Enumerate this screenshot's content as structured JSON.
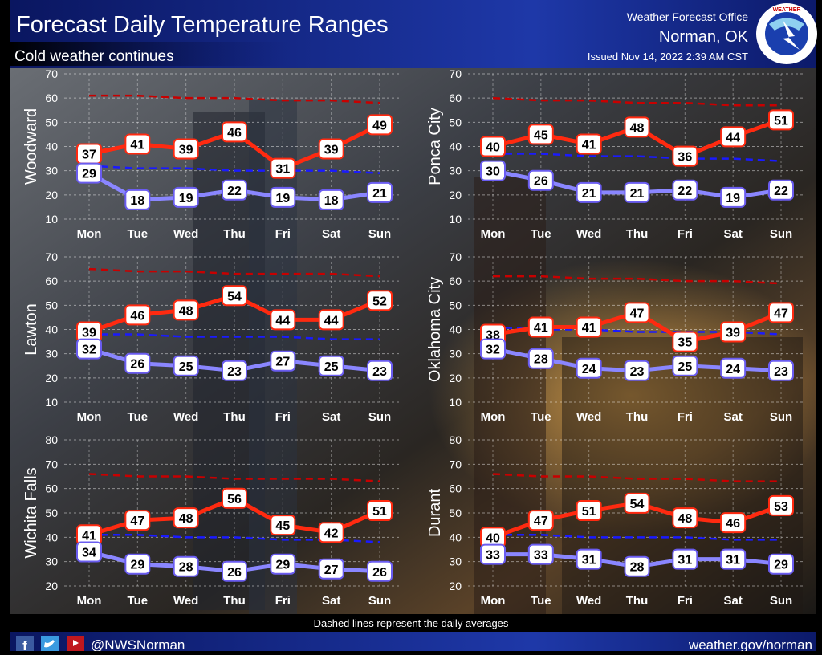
{
  "header": {
    "title": "Forecast Daily Temperature Ranges",
    "subtitle": "Cold weather continues",
    "office": "Weather Forecast Office",
    "location": "Norman, OK",
    "issued": "Issued Nov 14, 2022 2:39 AM CST",
    "logo_text": "NATIONAL WEATHER SERVICE"
  },
  "footer": {
    "note": "Dashed lines represent the daily averages",
    "handle": "@NWSNorman",
    "url": "weather.gov/norman",
    "icons": [
      "facebook-icon",
      "twitter-icon",
      "youtube-icon"
    ]
  },
  "colors": {
    "high": "#ff2a10",
    "low": "#8a86ff",
    "avg_high": "#c80000",
    "avg_low": "#1a1aff"
  },
  "chart_data": [
    {
      "type": "line",
      "title": "Woodward",
      "categories": [
        "Mon",
        "Tue",
        "Wed",
        "Thu",
        "Fri",
        "Sat",
        "Sun"
      ],
      "ylim": [
        10,
        70
      ],
      "yticks": [
        10,
        20,
        30,
        40,
        50,
        60,
        70
      ],
      "series": [
        {
          "name": "High",
          "values": [
            37,
            41,
            39,
            46,
            31,
            39,
            49
          ]
        },
        {
          "name": "Low",
          "values": [
            29,
            18,
            19,
            22,
            19,
            18,
            21
          ]
        },
        {
          "name": "Avg High",
          "values": [
            61,
            61,
            60,
            60,
            59,
            59,
            58
          ]
        },
        {
          "name": "Avg Low",
          "values": [
            32,
            31,
            31,
            30,
            30,
            30,
            29
          ]
        }
      ]
    },
    {
      "type": "line",
      "title": "Ponca City",
      "categories": [
        "Mon",
        "Tue",
        "Wed",
        "Thu",
        "Fri",
        "Sat",
        "Sun"
      ],
      "ylim": [
        10,
        70
      ],
      "yticks": [
        10,
        20,
        30,
        40,
        50,
        60,
        70
      ],
      "series": [
        {
          "name": "High",
          "values": [
            40,
            45,
            41,
            48,
            36,
            44,
            51
          ]
        },
        {
          "name": "Low",
          "values": [
            30,
            26,
            21,
            21,
            22,
            19,
            22
          ]
        },
        {
          "name": "Avg High",
          "values": [
            60,
            59,
            59,
            58,
            58,
            57,
            57
          ]
        },
        {
          "name": "Avg Low",
          "values": [
            37,
            37,
            36,
            36,
            35,
            35,
            34
          ]
        }
      ]
    },
    {
      "type": "line",
      "title": "Lawton",
      "categories": [
        "Mon",
        "Tue",
        "Wed",
        "Thu",
        "Fri",
        "Sat",
        "Sun"
      ],
      "ylim": [
        10,
        70
      ],
      "yticks": [
        10,
        20,
        30,
        40,
        50,
        60,
        70
      ],
      "series": [
        {
          "name": "High",
          "values": [
            39,
            46,
            48,
            54,
            44,
            44,
            52
          ]
        },
        {
          "name": "Low",
          "values": [
            32,
            26,
            25,
            23,
            27,
            25,
            23
          ]
        },
        {
          "name": "Avg High",
          "values": [
            65,
            64,
            64,
            63,
            63,
            63,
            62
          ]
        },
        {
          "name": "Avg Low",
          "values": [
            38,
            38,
            37,
            37,
            37,
            36,
            36
          ]
        }
      ]
    },
    {
      "type": "line",
      "title": "Oklahoma City",
      "categories": [
        "Mon",
        "Tue",
        "Wed",
        "Thu",
        "Fri",
        "Sat",
        "Sun"
      ],
      "ylim": [
        10,
        70
      ],
      "yticks": [
        10,
        20,
        30,
        40,
        50,
        60,
        70
      ],
      "series": [
        {
          "name": "High",
          "values": [
            38,
            41,
            41,
            47,
            35,
            39,
            47
          ]
        },
        {
          "name": "Low",
          "values": [
            32,
            28,
            24,
            23,
            25,
            24,
            23
          ]
        },
        {
          "name": "Avg High",
          "values": [
            62,
            62,
            61,
            61,
            60,
            60,
            59
          ]
        },
        {
          "name": "Avg Low",
          "values": [
            41,
            40,
            40,
            39,
            39,
            39,
            38
          ]
        }
      ]
    },
    {
      "type": "line",
      "title": "Wichita Falls",
      "categories": [
        "Mon",
        "Tue",
        "Wed",
        "Thu",
        "Fri",
        "Sat",
        "Sun"
      ],
      "ylim": [
        20,
        80
      ],
      "yticks": [
        20,
        30,
        40,
        50,
        60,
        70,
        80
      ],
      "series": [
        {
          "name": "High",
          "values": [
            41,
            47,
            48,
            56,
            45,
            42,
            51
          ]
        },
        {
          "name": "Low",
          "values": [
            34,
            29,
            28,
            26,
            29,
            27,
            26
          ]
        },
        {
          "name": "Avg High",
          "values": [
            66,
            65,
            65,
            64,
            64,
            64,
            63
          ]
        },
        {
          "name": "Avg Low",
          "values": [
            41,
            41,
            40,
            40,
            39,
            39,
            38
          ]
        }
      ]
    },
    {
      "type": "line",
      "title": "Durant",
      "categories": [
        "Mon",
        "Tue",
        "Wed",
        "Thu",
        "Fri",
        "Sat",
        "Sun"
      ],
      "ylim": [
        20,
        80
      ],
      "yticks": [
        20,
        30,
        40,
        50,
        60,
        70,
        80
      ],
      "series": [
        {
          "name": "High",
          "values": [
            40,
            47,
            51,
            54,
            48,
            46,
            53
          ]
        },
        {
          "name": "Low",
          "values": [
            33,
            33,
            31,
            28,
            31,
            31,
            29
          ]
        },
        {
          "name": "Avg High",
          "values": [
            66,
            65,
            65,
            64,
            64,
            63,
            63
          ]
        },
        {
          "name": "Avg Low",
          "values": [
            41,
            41,
            40,
            40,
            40,
            39,
            39
          ]
        }
      ]
    }
  ]
}
